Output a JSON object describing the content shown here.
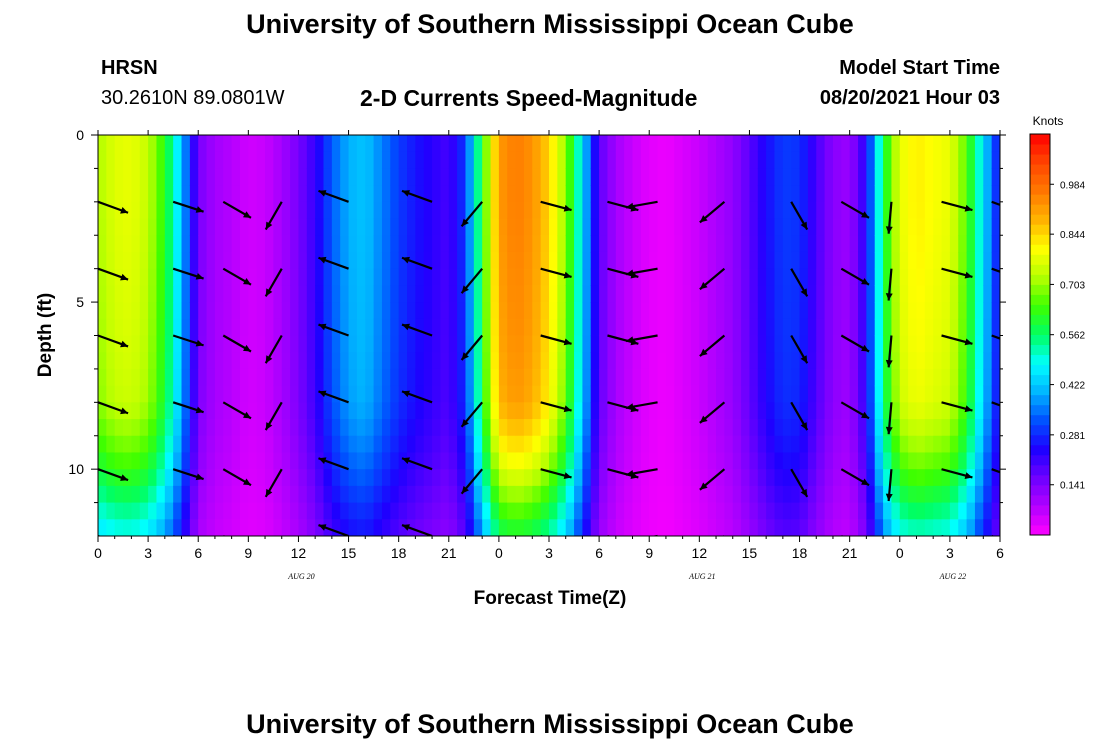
{
  "page": {
    "title_top": "University of Southern Mississippi Ocean Cube",
    "title_bottom": "University of Southern Mississippi Ocean Cube",
    "station": "HRSN",
    "coords": "30.2610N  89.0801W",
    "plot_title": "2-D Currents Speed-Magnitude",
    "model_label": "Model Start Time",
    "model_time": "08/20/2021 Hour 03"
  },
  "colors": {
    "scale": [
      "#ff00ff",
      "#b400ff",
      "#6e00ff",
      "#1e00ff",
      "#0050ff",
      "#00b4ff",
      "#00ffff",
      "#00ff64",
      "#3cff00",
      "#b4ff00",
      "#ffff00",
      "#ffb400",
      "#ff7800",
      "#ff4600",
      "#ff0000"
    ],
    "arrow": "#000000"
  },
  "chart_data": {
    "type": "heatmap",
    "title": "2-D Currents Speed-Magnitude",
    "xlabel": "Forecast Time(Z)",
    "ylabel": "Depth (ft)",
    "xlim": [
      0,
      54
    ],
    "ylim": [
      12,
      0
    ],
    "x_ticks": [
      0,
      3,
      6,
      9,
      12,
      15,
      18,
      21,
      24,
      27,
      30,
      33,
      36,
      39,
      42,
      45,
      48,
      51,
      54
    ],
    "x_tick_labels": [
      "0",
      "3",
      "6",
      "9",
      "12",
      "15",
      "18",
      "21",
      "0",
      "3",
      "6",
      "9",
      "12",
      "15",
      "18",
      "21",
      "0",
      "3",
      "6"
    ],
    "y_ticks": [
      0,
      5,
      10
    ],
    "y_tick_labels": [
      "0",
      "5",
      "10"
    ],
    "date_labels": [
      {
        "x": 12,
        "label": "AUG 20"
      },
      {
        "x": 36,
        "label": "AUG 21"
      },
      {
        "x": 51,
        "label": "AUG 22"
      }
    ],
    "colorbar": {
      "label": "Knots",
      "min": 0,
      "max": 1.125,
      "ticks": [
        0.984,
        0.844,
        0.703,
        0.562,
        0.422,
        0.281,
        0.141
      ],
      "tick_labels": [
        "0.984",
        "0.844",
        "0.703",
        "0.562",
        "0.422",
        "0.281",
        "0.141"
      ]
    },
    "time_profile": {
      "hours": [
        0,
        1,
        2,
        3,
        4,
        5,
        6,
        7,
        8,
        9,
        10,
        11,
        12,
        13,
        14,
        15,
        16,
        17,
        18,
        19,
        20,
        21,
        22,
        23,
        24,
        25,
        26,
        27,
        28,
        29,
        30,
        31,
        32,
        33,
        34,
        35,
        36,
        37,
        38,
        39,
        40,
        41,
        42,
        43,
        44,
        45,
        46,
        47,
        48,
        49,
        50,
        51,
        52,
        53,
        54
      ],
      "speed_knots": [
        0.72,
        0.77,
        0.78,
        0.74,
        0.62,
        0.42,
        0.15,
        0.1,
        0.08,
        0.05,
        0.06,
        0.1,
        0.15,
        0.22,
        0.33,
        0.4,
        0.42,
        0.36,
        0.3,
        0.26,
        0.23,
        0.2,
        0.3,
        0.62,
        0.92,
        0.96,
        0.93,
        0.85,
        0.7,
        0.45,
        0.18,
        0.1,
        0.06,
        0.03,
        0.02,
        0.04,
        0.06,
        0.09,
        0.12,
        0.18,
        0.25,
        0.3,
        0.29,
        0.2,
        0.13,
        0.11,
        0.24,
        0.58,
        0.78,
        0.82,
        0.8,
        0.78,
        0.66,
        0.45,
        0.24
      ]
    },
    "depth_profile": {
      "depths_ft": [
        0,
        2,
        4,
        6,
        8,
        9,
        10,
        11,
        12
      ],
      "factor": [
        1.0,
        1.0,
        0.99,
        0.98,
        0.96,
        0.9,
        0.82,
        0.72,
        0.62
      ]
    },
    "vector_depths_ft": [
      2,
      4,
      6,
      8,
      10,
      12
    ],
    "vectors": [
      {
        "hour": 0,
        "dir_deg": 20
      },
      {
        "hour": 4.5,
        "dir_deg": 18
      },
      {
        "hour": 7.5,
        "dir_deg": 30
      },
      {
        "hour": 11,
        "dir_deg": 120
      },
      {
        "hour": 15,
        "dir_deg": 200
      },
      {
        "hour": 20,
        "dir_deg": 200
      },
      {
        "hour": 23,
        "dir_deg": 130
      },
      {
        "hour": 26.5,
        "dir_deg": 15
      },
      {
        "hour": 30.5,
        "dir_deg": 15
      },
      {
        "hour": 33.5,
        "dir_deg": 170
      },
      {
        "hour": 37.5,
        "dir_deg": 140
      },
      {
        "hour": 41.5,
        "dir_deg": 60
      },
      {
        "hour": 44.5,
        "dir_deg": 30
      },
      {
        "hour": 47.5,
        "dir_deg": 95
      },
      {
        "hour": 50.5,
        "dir_deg": 15
      },
      {
        "hour": 53.5,
        "dir_deg": 20
      }
    ]
  }
}
